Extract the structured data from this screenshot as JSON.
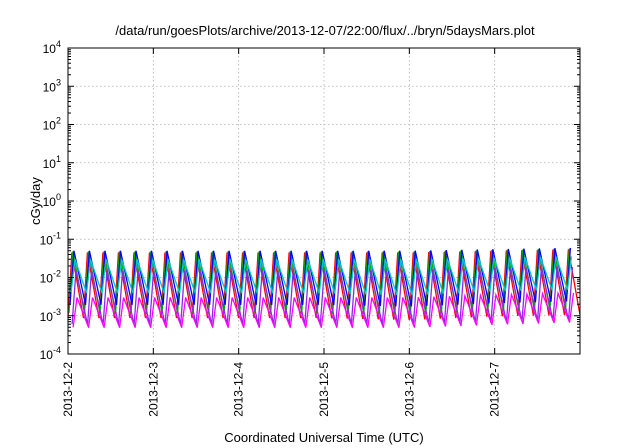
{
  "chart_data": {
    "type": "line",
    "title": "/data/run/goesPlots/archive/2013-12-07/22:00/flux/../bryn/5daysMars.plot",
    "xlabel": "Coordinated Universal Time (UTC)",
    "ylabel": "cGy/day",
    "yscale": "log",
    "ylim": [
      0.0001,
      10000
    ],
    "xlim": [
      "2013-12-02",
      "2013-12-08"
    ],
    "y_ticks": [
      {
        "base": "10",
        "exp": "-4",
        "value": 0.0001
      },
      {
        "base": "10",
        "exp": "-3",
        "value": 0.001
      },
      {
        "base": "10",
        "exp": "-2",
        "value": 0.01
      },
      {
        "base": "10",
        "exp": "-1",
        "value": 0.1
      },
      {
        "base": "10",
        "exp": "0",
        "value": 1
      },
      {
        "base": "10",
        "exp": "1",
        "value": 10
      },
      {
        "base": "10",
        "exp": "2",
        "value": 100
      },
      {
        "base": "10",
        "exp": "3",
        "value": 1000
      },
      {
        "base": "10",
        "exp": "4",
        "value": 10000
      }
    ],
    "x_ticks": [
      "2013-12-2",
      "2013-12-3",
      "2013-12-4",
      "2013-12-5",
      "2013-12-6",
      "2013-12-7"
    ],
    "grid": true,
    "legend": "none",
    "oscillation": {
      "cycles_per_day": 5.5
    },
    "series": [
      {
        "color": "#ff0000",
        "low": [
          0.0009,
          0.0009,
          0.0009,
          0.0009,
          0.0008,
          0.001,
          0.0011
        ],
        "high": [
          0.045,
          0.045,
          0.045,
          0.045,
          0.045,
          0.05,
          0.055
        ]
      },
      {
        "color": "#00b000",
        "low": [
          0.0012,
          0.0012,
          0.0012,
          0.0012,
          0.0011,
          0.0014,
          0.0015
        ],
        "high": [
          0.048,
          0.048,
          0.048,
          0.048,
          0.048,
          0.052,
          0.058
        ]
      },
      {
        "color": "#0000ff",
        "low": [
          0.002,
          0.002,
          0.002,
          0.002,
          0.0018,
          0.0022,
          0.0025
        ],
        "high": [
          0.05,
          0.05,
          0.05,
          0.05,
          0.05,
          0.055,
          0.06
        ]
      },
      {
        "color": "#00c8c8",
        "low": [
          0.004,
          0.004,
          0.004,
          0.004,
          0.0035,
          0.0045,
          0.005
        ],
        "high": [
          0.03,
          0.03,
          0.03,
          0.03,
          0.03,
          0.033,
          0.036
        ]
      },
      {
        "color": "#8a2be2",
        "low": [
          0.0006,
          0.0006,
          0.0006,
          0.0006,
          0.0006,
          0.0007,
          0.0008
        ],
        "high": [
          0.015,
          0.015,
          0.015,
          0.015,
          0.015,
          0.017,
          0.019
        ]
      },
      {
        "color": "#ff00ff",
        "low": [
          0.0005,
          0.0005,
          0.0005,
          0.0005,
          0.0005,
          0.0006,
          0.0007
        ],
        "high": [
          0.003,
          0.003,
          0.003,
          0.003,
          0.003,
          0.0035,
          0.004
        ]
      }
    ]
  }
}
